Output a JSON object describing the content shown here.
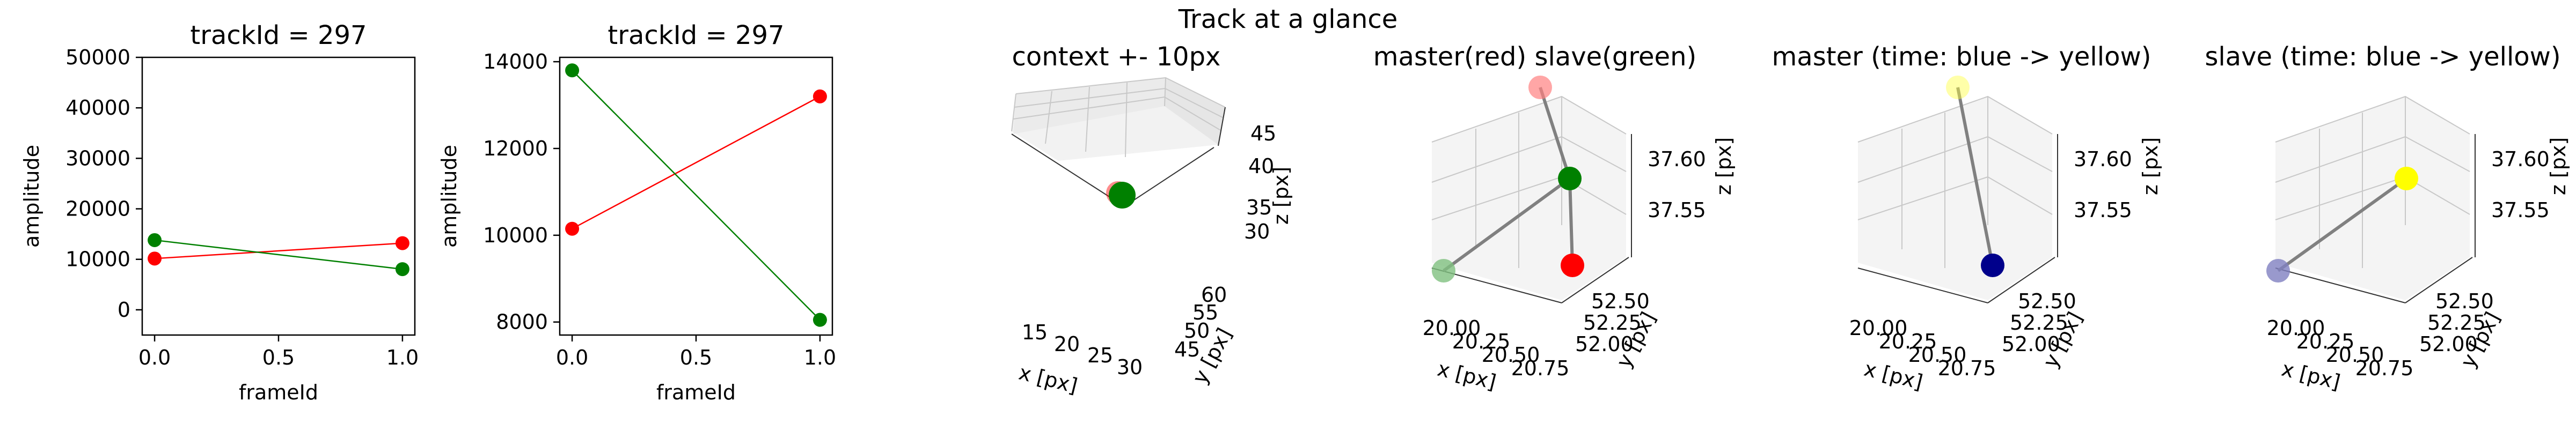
{
  "figure": {
    "suptitle": "Track at a glance"
  },
  "chart_data": [
    {
      "type": "line",
      "title": "trackId = 297",
      "xlabel": "frameId",
      "ylabel": "amplitude",
      "xlim": [
        -0.05,
        1.05
      ],
      "ylim": [
        -5000,
        50000
      ],
      "xticks": [
        0.0,
        0.5,
        1.0
      ],
      "xtick_labels": [
        "0.0",
        "0.5",
        "1.0"
      ],
      "yticks": [
        0,
        10000,
        20000,
        30000,
        40000,
        50000
      ],
      "ytick_labels": [
        "0",
        "10000",
        "20000",
        "30000",
        "40000",
        "50000"
      ],
      "series": [
        {
          "color": "#ff0000",
          "x": [
            0,
            1
          ],
          "y": [
            10150,
            13200
          ]
        },
        {
          "color": "#008000",
          "x": [
            0,
            1
          ],
          "y": [
            13800,
            8050
          ]
        }
      ]
    },
    {
      "type": "line",
      "title": "trackId = 297",
      "xlabel": "frameId",
      "ylabel": "amplitude",
      "xlim": [
        -0.05,
        1.05
      ],
      "ylim": [
        7700,
        14100
      ],
      "xticks": [
        0.0,
        0.5,
        1.0
      ],
      "xtick_labels": [
        "0.0",
        "0.5",
        "1.0"
      ],
      "yticks": [
        8000,
        10000,
        12000,
        14000
      ],
      "ytick_labels": [
        "8000",
        "10000",
        "12000",
        "14000"
      ],
      "series": [
        {
          "color": "#ff0000",
          "x": [
            0,
            1
          ],
          "y": [
            10150,
            13200
          ]
        },
        {
          "color": "#008000",
          "x": [
            0,
            1
          ],
          "y": [
            13800,
            8050
          ]
        }
      ]
    },
    {
      "type": "scatter",
      "title": "context +- 10px",
      "xlabel": "x [px]",
      "ylabel": "y [px]",
      "zlabel": "z [px]",
      "xtick_labels": [
        "15",
        "20",
        "25",
        "30"
      ],
      "ytick_labels": [
        "45",
        "50",
        "55",
        "60"
      ],
      "ztick_labels": [
        "30",
        "35",
        "40",
        "45"
      ],
      "points": [
        {
          "x": 20.3,
          "y": 52.2,
          "z": 37.57,
          "color": "#ff0000"
        },
        {
          "x": 20.1,
          "y": 52.4,
          "z": 37.55,
          "color": "#008000"
        }
      ]
    },
    {
      "type": "scatter",
      "title": "master(red) slave(green)",
      "xlabel": "x [px]",
      "ylabel": "y [px]",
      "zlabel": "z [px]",
      "xtick_labels": [
        "20.00",
        "20.25",
        "20.50",
        "20.75"
      ],
      "ytick_labels": [
        "52.00",
        "52.25",
        "52.50"
      ],
      "ztick_labels": [
        "37.55",
        "37.60"
      ],
      "points": [
        {
          "color": "#ff0000"
        },
        {
          "color": "#008000"
        },
        {
          "color": "#ff8080"
        },
        {
          "color": "#80c080"
        }
      ]
    },
    {
      "type": "scatter",
      "title": "master (time: blue -> yellow)",
      "xlabel": "x [px]",
      "ylabel": "y [px]",
      "zlabel": "z [px]",
      "xtick_labels": [
        "20.00",
        "20.25",
        "20.50",
        "20.75"
      ],
      "ytick_labels": [
        "52.00",
        "52.25",
        "52.50"
      ],
      "ztick_labels": [
        "37.55",
        "37.60"
      ],
      "points": [
        {
          "color": "#00008b"
        },
        {
          "color": "#ffff40"
        }
      ]
    },
    {
      "type": "scatter",
      "title": "slave (time: blue -> yellow)",
      "xlabel": "x [px]",
      "ylabel": "y [px]",
      "zlabel": "z [px]",
      "xtick_labels": [
        "20.00",
        "20.25",
        "20.50",
        "20.75"
      ],
      "ytick_labels": [
        "52.00",
        "52.25",
        "52.50"
      ],
      "ztick_labels": [
        "37.55",
        "37.60"
      ],
      "points": [
        {
          "color": "#8080c0"
        },
        {
          "color": "#ffff00"
        }
      ]
    }
  ]
}
